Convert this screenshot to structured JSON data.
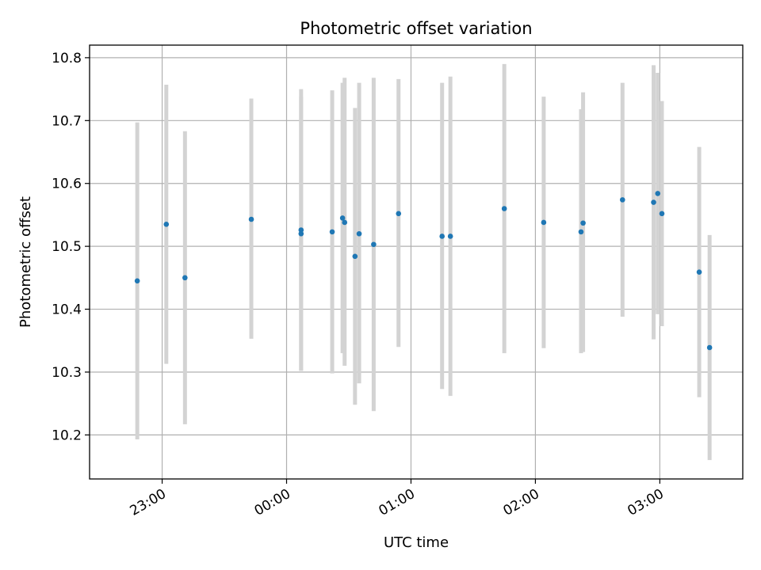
{
  "chart_data": {
    "type": "scatter",
    "title": "Photometric offset variation",
    "xlabel": "UTC time",
    "ylabel": "Photometric offset",
    "x_axis_type": "time",
    "xlim": [
      "22:25",
      "03:40"
    ],
    "ylim": [
      10.13,
      10.82
    ],
    "grid": true,
    "x_ticks": [
      "23:00",
      "00:00",
      "01:00",
      "02:00",
      "03:00"
    ],
    "x_tick_times": [
      "23:00",
      "00:00",
      "01:00",
      "02:00",
      "03:00"
    ],
    "y_ticks": [
      10.2,
      10.3,
      10.4,
      10.5,
      10.6,
      10.7,
      10.8
    ],
    "y_tick_labels": [
      "10.2",
      "10.3",
      "10.4",
      "10.5",
      "10.6",
      "10.7",
      "10.8"
    ],
    "colors": {
      "points": "#1f77b4",
      "error_bars": "#d3d3d3",
      "grid": "#b0b0b0"
    },
    "points": [
      {
        "time": "22:48",
        "y": 10.445,
        "yerr_low": 10.193,
        "yerr_high": 10.697
      },
      {
        "time": "23:02",
        "y": 10.535,
        "yerr_low": 10.313,
        "yerr_high": 10.757
      },
      {
        "time": "23:11",
        "y": 10.45,
        "yerr_low": 10.217,
        "yerr_high": 10.683
      },
      {
        "time": "23:43",
        "y": 10.543,
        "yerr_low": 10.353,
        "yerr_high": 10.735
      },
      {
        "time": "00:07",
        "y": 10.52,
        "yerr_low": 10.302,
        "yerr_high": 10.738
      },
      {
        "time": "00:07",
        "y": 10.526,
        "yerr_low": 10.302,
        "yerr_high": 10.75
      },
      {
        "time": "00:22",
        "y": 10.523,
        "yerr_low": 10.298,
        "yerr_high": 10.748
      },
      {
        "time": "00:27",
        "y": 10.545,
        "yerr_low": 10.33,
        "yerr_high": 10.76
      },
      {
        "time": "00:28",
        "y": 10.538,
        "yerr_low": 10.31,
        "yerr_high": 10.768
      },
      {
        "time": "00:33",
        "y": 10.484,
        "yerr_low": 10.248,
        "yerr_high": 10.72
      },
      {
        "time": "00:35",
        "y": 10.52,
        "yerr_low": 10.282,
        "yerr_high": 10.76
      },
      {
        "time": "00:42",
        "y": 10.503,
        "yerr_low": 10.238,
        "yerr_high": 10.768
      },
      {
        "time": "00:54",
        "y": 10.552,
        "yerr_low": 10.34,
        "yerr_high": 10.766
      },
      {
        "time": "01:15",
        "y": 10.516,
        "yerr_low": 10.273,
        "yerr_high": 10.76
      },
      {
        "time": "01:19",
        "y": 10.516,
        "yerr_low": 10.262,
        "yerr_high": 10.77
      },
      {
        "time": "01:45",
        "y": 10.56,
        "yerr_low": 10.33,
        "yerr_high": 10.79
      },
      {
        "time": "02:04",
        "y": 10.538,
        "yerr_low": 10.338,
        "yerr_high": 10.738
      },
      {
        "time": "02:22",
        "y": 10.523,
        "yerr_low": 10.33,
        "yerr_high": 10.718
      },
      {
        "time": "02:23",
        "y": 10.537,
        "yerr_low": 10.332,
        "yerr_high": 10.745
      },
      {
        "time": "02:42",
        "y": 10.574,
        "yerr_low": 10.388,
        "yerr_high": 10.76
      },
      {
        "time": "02:57",
        "y": 10.57,
        "yerr_low": 10.352,
        "yerr_high": 10.788
      },
      {
        "time": "02:59",
        "y": 10.584,
        "yerr_low": 10.392,
        "yerr_high": 10.776
      },
      {
        "time": "03:01",
        "y": 10.552,
        "yerr_low": 10.373,
        "yerr_high": 10.731
      },
      {
        "time": "03:19",
        "y": 10.459,
        "yerr_low": 10.26,
        "yerr_high": 10.658
      },
      {
        "time": "03:24",
        "y": 10.339,
        "yerr_low": 10.16,
        "yerr_high": 10.518
      }
    ]
  }
}
